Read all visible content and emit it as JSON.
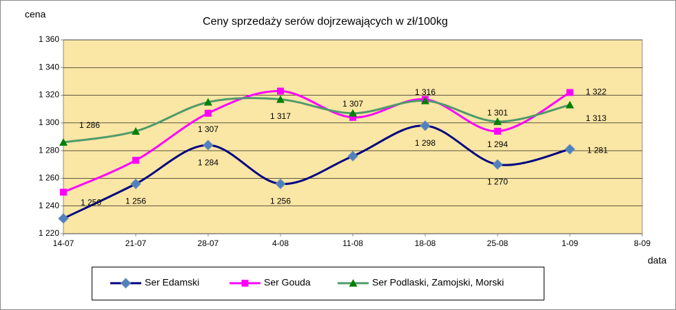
{
  "chart_data": {
    "type": "line",
    "title": "Ceny sprzedaży serów dojrzewających w zł/100kg",
    "ylabel": "cena",
    "xlabel": "data",
    "categories": [
      "14-07",
      "21-07",
      "28-07",
      "4-08",
      "11-08",
      "18-08",
      "25-08",
      "1-09",
      "8-09"
    ],
    "series": [
      {
        "name": "Ser Edamski",
        "color": "#000080",
        "marker_color": "#4F81BD",
        "marker": "diamond",
        "values": [
          1231,
          1256,
          1284,
          1256,
          1276,
          1298,
          1270,
          1281,
          null
        ],
        "value_labels": [
          null,
          "1 256",
          "1 284",
          "1 256",
          null,
          "1 298",
          "1 270",
          "1 281",
          null
        ]
      },
      {
        "name": "Ser Gouda",
        "color": "#FF00FF",
        "marker_color": "#FF00FF",
        "marker": "square",
        "values": [
          1250,
          1273,
          1307,
          1323,
          1304,
          1317,
          1294,
          1322,
          null
        ],
        "value_labels": [
          "1 250",
          null,
          "1 307",
          null,
          null,
          null,
          "1 294",
          "1 322",
          null
        ]
      },
      {
        "name": "Ser Podlaski, Zamojski, Morski",
        "color": "#4F9A6A",
        "marker_color": "#008000",
        "marker": "triangle",
        "values": [
          1286,
          1294,
          1315,
          1317,
          1307,
          1316,
          1301,
          1313,
          null
        ],
        "value_labels": [
          "1 286",
          null,
          null,
          "1 317",
          "1 307",
          "1 316",
          "1 301",
          "1 313",
          null
        ]
      }
    ],
    "ylim": [
      1220,
      1360
    ],
    "yticks": [
      {
        "value": 1220,
        "label": "1 220"
      },
      {
        "value": 1240,
        "label": "1 240"
      },
      {
        "value": 1260,
        "label": "1 260"
      },
      {
        "value": 1280,
        "label": "1 280"
      },
      {
        "value": 1300,
        "label": "1 300"
      },
      {
        "value": 1320,
        "label": "1 320"
      },
      {
        "value": 1340,
        "label": "1 340"
      },
      {
        "value": 1360,
        "label": "1 360"
      }
    ],
    "grid": true,
    "legend": "bottom",
    "plot_background": "#FAE6A5"
  }
}
